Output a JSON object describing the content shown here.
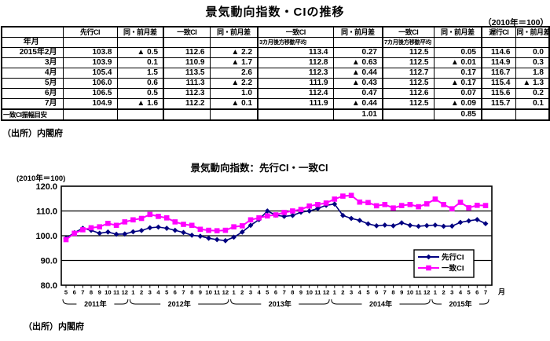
{
  "doc": {
    "title": "景気動向指数・CIの推移",
    "unit_note": "（2010年＝100）",
    "source": "（出所）内閣府",
    "source_bottom": "（出所）内閣府"
  },
  "table": {
    "headers": [
      "",
      "先行CI",
      "同・前月差",
      "一致CI",
      "同・前月差",
      "一致CI",
      "同・前月差",
      "一致CI",
      "同・前月差",
      "遅行CI",
      "同・前月差"
    ],
    "subheaders": [
      "年月",
      "",
      "",
      "",
      "",
      "3カ月後方移動平均",
      "",
      "7カ月後方移動平均",
      "",
      "",
      ""
    ],
    "rows": [
      [
        "2015年2月",
        "103.8",
        "▲ 0.5",
        "112.6",
        "▲ 2.2",
        "113.4",
        "0.27",
        "112.5",
        "0.05",
        "114.6",
        "0.0"
      ],
      [
        "3月",
        "103.9",
        "0.1",
        "110.9",
        "▲ 1.7",
        "112.8",
        "▲ 0.63",
        "112.5",
        "▲ 0.01",
        "114.9",
        "0.3"
      ],
      [
        "4月",
        "105.4",
        "1.5",
        "113.5",
        "2.6",
        "112.3",
        "▲ 0.44",
        "112.7",
        "0.17",
        "116.7",
        "1.8"
      ],
      [
        "5月",
        "106.0",
        "0.6",
        "111.3",
        "▲ 2.2",
        "111.9",
        "▲ 0.43",
        "112.5",
        "▲ 0.17",
        "115.4",
        "▲ 1.3"
      ],
      [
        "6月",
        "106.5",
        "0.5",
        "112.3",
        "1.0",
        "112.4",
        "0.47",
        "112.6",
        "0.07",
        "115.6",
        "0.2"
      ],
      [
        "7月",
        "104.9",
        "▲ 1.6",
        "112.2",
        "▲ 0.1",
        "111.9",
        "▲ 0.44",
        "112.5",
        "▲ 0.09",
        "115.7",
        "0.1"
      ],
      [
        "一致CI振幅目安",
        "",
        "",
        "",
        "",
        "",
        "1.01",
        "",
        "0.85",
        "",
        ""
      ]
    ]
  },
  "chart_data": {
    "type": "line",
    "title": "景気動向指数：先行CI・一致CI",
    "unit_label": "(2010年＝100)",
    "x_axis_suffix": "月",
    "ylim": [
      80,
      120
    ],
    "y_ticks": [
      "120.0",
      "110.0",
      "100.0",
      "90.0",
      "80.0"
    ],
    "grid": "horizontal",
    "legend_position": "inside-right",
    "x_labels": [
      "5",
      "6",
      "7",
      "8",
      "9",
      "10",
      "11",
      "12",
      "1",
      "2",
      "3",
      "4",
      "5",
      "6",
      "7",
      "8",
      "9",
      "10",
      "11",
      "12",
      "1",
      "2",
      "3",
      "4",
      "5",
      "6",
      "7",
      "8",
      "9",
      "10",
      "11",
      "12",
      "1",
      "2",
      "3",
      "4",
      "5",
      "6",
      "7",
      "8",
      "9",
      "10",
      "11",
      "12",
      "1",
      "2",
      "3",
      "4",
      "5",
      "6",
      "7"
    ],
    "year_groups": [
      {
        "label": "2011年",
        "count": 8
      },
      {
        "label": "2012年",
        "count": 12
      },
      {
        "label": "2013年",
        "count": 12
      },
      {
        "label": "2014年",
        "count": 12
      },
      {
        "label": "2015年",
        "count": 7
      }
    ],
    "series": [
      {
        "name": "先行CI",
        "color": "#000080",
        "marker": "diamond",
        "values": [
          99.0,
          101.2,
          103.0,
          102.2,
          101.0,
          101.5,
          100.6,
          100.7,
          101.6,
          102.1,
          103.2,
          103.5,
          103.0,
          102.2,
          101.3,
          100.2,
          99.8,
          99.0,
          98.4,
          98.0,
          99.4,
          101.5,
          104.2,
          106.5,
          110.0,
          108.3,
          107.8,
          108.2,
          109.5,
          110.0,
          111.0,
          112.3,
          112.8,
          108.2,
          107.0,
          106.2,
          104.8,
          104.0,
          104.3,
          104.0,
          105.2,
          104.2,
          103.8,
          104.1,
          104.3,
          103.8,
          103.9,
          105.4,
          106.0,
          106.5,
          104.9
        ]
      },
      {
        "name": "一致CI",
        "color": "#FF00FF",
        "marker": "square",
        "values": [
          98.4,
          101.0,
          102.4,
          103.2,
          103.6,
          105.0,
          104.2,
          105.6,
          106.4,
          107.0,
          108.6,
          107.8,
          107.2,
          105.6,
          104.6,
          104.2,
          102.6,
          102.2,
          102.0,
          102.2,
          103.6,
          104.0,
          106.4,
          107.2,
          108.0,
          108.4,
          109.4,
          110.0,
          110.6,
          112.0,
          112.6,
          113.2,
          114.8,
          116.0,
          116.3,
          113.6,
          113.4,
          112.1,
          112.6,
          111.2,
          112.2,
          112.6,
          111.7,
          112.9,
          114.8,
          112.6,
          110.9,
          113.5,
          111.3,
          112.3,
          112.2
        ]
      }
    ]
  }
}
